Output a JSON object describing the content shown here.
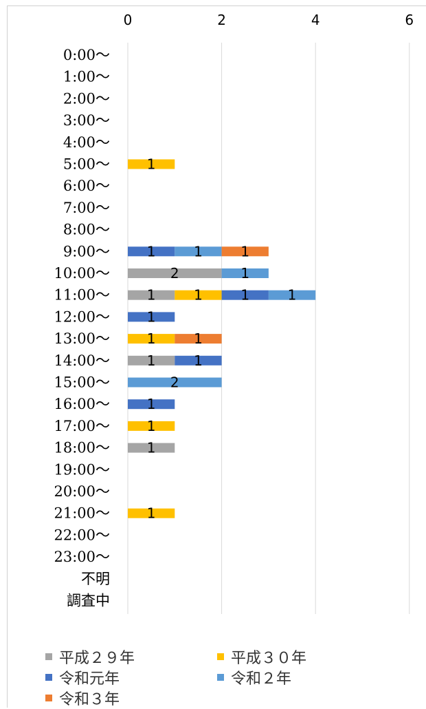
{
  "chart_data": {
    "type": "bar",
    "orientation": "horizontal",
    "stacked": true,
    "title": "",
    "xlabel": "",
    "ylabel": "",
    "xlim": [
      0,
      6
    ],
    "x_ticks": [
      "0",
      "2",
      "4",
      "6"
    ],
    "x_axis_position": "top",
    "grid": true,
    "legend_position": "bottom",
    "categories": [
      "0:00～",
      "1:00～",
      "2:00～",
      "3:00～",
      "4:00～",
      "5:00～",
      "6:00～",
      "7:00～",
      "8:00～",
      "9:00～",
      "10:00～",
      "11:00～",
      "12:00～",
      "13:00～",
      "14:00～",
      "15:00～",
      "16:00～",
      "17:00～",
      "18:00～",
      "19:00～",
      "20:00～",
      "21:00～",
      "22:00～",
      "23:00～",
      "不明",
      "調査中"
    ],
    "series": [
      {
        "name": "平成２９年",
        "color": "#a5a5a5",
        "values": [
          0,
          0,
          0,
          0,
          0,
          0,
          0,
          0,
          0,
          0,
          2,
          1,
          0,
          0,
          1,
          0,
          0,
          0,
          1,
          0,
          0,
          0,
          0,
          0,
          0,
          0
        ]
      },
      {
        "name": "平成３０年",
        "color": "#ffc000",
        "values": [
          0,
          0,
          0,
          0,
          0,
          1,
          0,
          0,
          0,
          0,
          0,
          1,
          0,
          1,
          0,
          0,
          0,
          1,
          0,
          0,
          0,
          1,
          0,
          0,
          0,
          0
        ]
      },
      {
        "name": "令和元年",
        "color": "#4472c4",
        "values": [
          0,
          0,
          0,
          0,
          0,
          0,
          0,
          0,
          0,
          1,
          0,
          1,
          1,
          0,
          1,
          0,
          1,
          0,
          0,
          0,
          0,
          0,
          0,
          0,
          0,
          0
        ]
      },
      {
        "name": "令和２年",
        "color": "#5b9bd5",
        "values": [
          0,
          0,
          0,
          0,
          0,
          0,
          0,
          0,
          0,
          1,
          1,
          1,
          0,
          0,
          0,
          2,
          0,
          0,
          0,
          0,
          0,
          0,
          0,
          0,
          0,
          0
        ]
      },
      {
        "name": "令和３年",
        "color": "#ed7d31",
        "values": [
          0,
          0,
          0,
          0,
          0,
          0,
          0,
          0,
          0,
          1,
          0,
          0,
          0,
          1,
          0,
          0,
          0,
          0,
          0,
          0,
          0,
          0,
          0,
          0,
          0,
          0
        ]
      }
    ]
  }
}
